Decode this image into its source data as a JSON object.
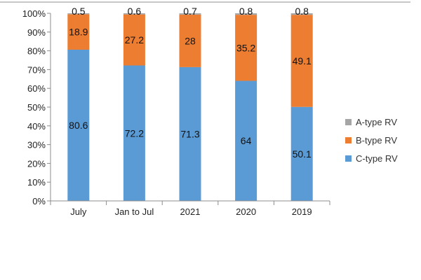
{
  "chart_data": {
    "type": "bar",
    "stacked": true,
    "categories": [
      "July",
      "Jan to Jul",
      "2021",
      "2020",
      "2019"
    ],
    "series": [
      {
        "name": "C-type RV",
        "values": [
          80.6,
          72.2,
          71.3,
          64,
          50.1
        ],
        "color": "#5b9bd5"
      },
      {
        "name": "B-type RV",
        "values": [
          18.9,
          27.2,
          28,
          35.2,
          49.1
        ],
        "color": "#ed7d31"
      },
      {
        "name": "A-type RV",
        "values": [
          0.5,
          0.6,
          0.7,
          0.8,
          0.8
        ],
        "color": "#a5a5a5"
      }
    ],
    "y_ticks": [
      "0%",
      "10%",
      "20%",
      "30%",
      "40%",
      "50%",
      "60%",
      "70%",
      "80%",
      "90%",
      "100%"
    ],
    "ylim": [
      0,
      100
    ],
    "grid": false,
    "legend_position": "right",
    "legend_order": [
      "A-type RV",
      "B-type RV",
      "C-type RV"
    ]
  }
}
